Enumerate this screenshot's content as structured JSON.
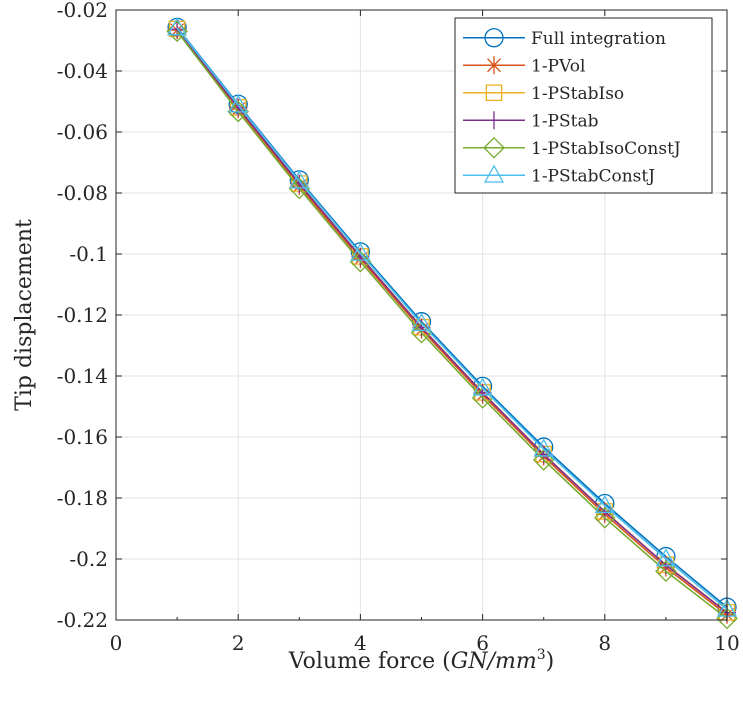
{
  "chart_data": {
    "type": "line",
    "title": "",
    "xlabel": "Volume force (",
    "xlabel_math": "GN/mm",
    "xlabel_sup": "3",
    "xlabel_close": ")",
    "ylabel": "Tip displacement",
    "xlim": [
      0,
      10
    ],
    "ylim": [
      -0.22,
      -0.02
    ],
    "xticks": [
      0,
      2,
      4,
      6,
      8,
      10
    ],
    "yticks": [
      -0.22,
      -0.2,
      -0.18,
      -0.16,
      -0.14,
      -0.12,
      -0.1,
      -0.08,
      -0.06,
      -0.04,
      -0.02
    ],
    "xtick_labels": [
      "0",
      "2",
      "4",
      "6",
      "8",
      "10"
    ],
    "ytick_labels": [
      "-0.22",
      "-0.2",
      "-0.18",
      "-0.16",
      "-0.14",
      "-0.12",
      "-0.1",
      "-0.08",
      "-0.06",
      "-0.04",
      "-0.02"
    ],
    "grid": true,
    "legend_position": "top-right",
    "x": [
      1,
      2,
      3,
      4,
      5,
      6,
      7,
      8,
      9,
      10
    ],
    "series": [
      {
        "name": "Full integration",
        "color": "#0072BD",
        "marker": "circle",
        "values": [
          -0.0257,
          -0.0509,
          -0.0757,
          -0.0993,
          -0.1222,
          -0.1434,
          -0.1633,
          -0.1818,
          -0.1992,
          -0.2158
        ]
      },
      {
        "name": "1-PVol",
        "color": "#D95319",
        "marker": "asterisk",
        "values": [
          -0.0266,
          -0.0525,
          -0.0777,
          -0.1016,
          -0.1248,
          -0.1462,
          -0.1664,
          -0.1853,
          -0.2028,
          -0.2183
        ]
      },
      {
        "name": "1-PStabIso",
        "color": "#EDB120",
        "marker": "square",
        "values": [
          -0.0262,
          -0.0519,
          -0.0769,
          -0.1008,
          -0.124,
          -0.1454,
          -0.1656,
          -0.1844,
          -0.2019,
          -0.2175
        ]
      },
      {
        "name": "1-PStab",
        "color": "#7E2F8E",
        "marker": "plus",
        "values": [
          -0.0263,
          -0.052,
          -0.077,
          -0.1009,
          -0.1241,
          -0.1455,
          -0.1657,
          -0.1845,
          -0.202,
          -0.2176
        ]
      },
      {
        "name": "1-PStabIsoConstJ",
        "color": "#77AC30",
        "marker": "diamond",
        "values": [
          -0.027,
          -0.0533,
          -0.0785,
          -0.1025,
          -0.1258,
          -0.1472,
          -0.1675,
          -0.1865,
          -0.204,
          -0.2195
        ]
      },
      {
        "name": "1-PStabConstJ",
        "color": "#4DBEEE",
        "marker": "triangle",
        "values": [
          -0.0259,
          -0.0512,
          -0.0761,
          -0.0998,
          -0.1228,
          -0.144,
          -0.164,
          -0.1825,
          -0.2,
          -0.2165
        ]
      }
    ]
  }
}
